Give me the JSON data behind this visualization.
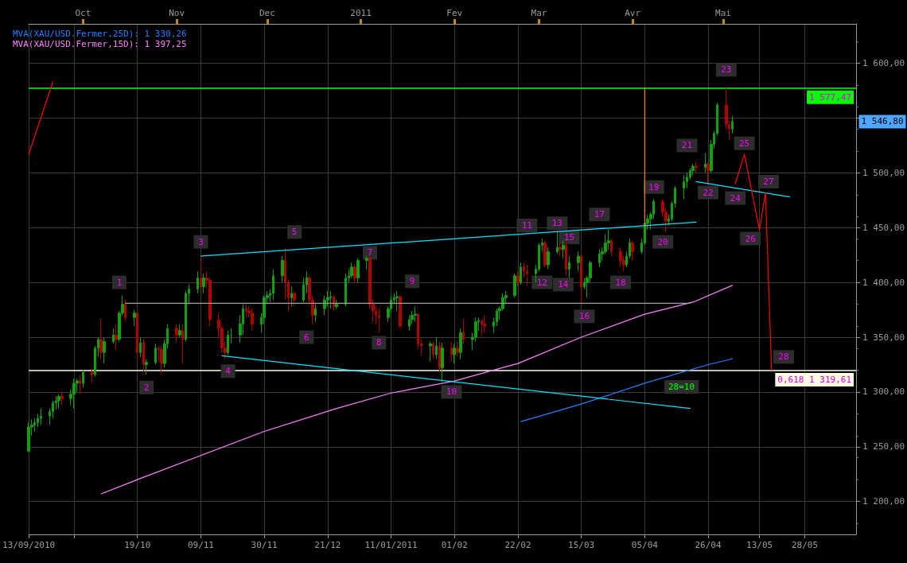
{
  "chart_data": {
    "type": "candlestick",
    "x": [
      "2010-09-13",
      "2010-09-14",
      "2010-09-15",
      "2010-09-16",
      "2010-09-17",
      "2010-09-20",
      "2010-09-21",
      "2010-09-22",
      "2010-09-23",
      "2010-09-24",
      "2010-09-27",
      "2010-09-28",
      "2010-09-29",
      "2010-09-30",
      "2010-10-01",
      "2010-10-04",
      "2010-10-05",
      "2010-10-06",
      "2010-10-07",
      "2010-10-08",
      "2010-10-11",
      "2010-10-12",
      "2010-10-13",
      "2010-10-14",
      "2010-10-15",
      "2010-10-18",
      "2010-10-19",
      "2010-10-20",
      "2010-10-21",
      "2010-10-22",
      "2010-10-25",
      "2010-10-26",
      "2010-10-27",
      "2010-10-28",
      "2010-10-29",
      "2010-11-01",
      "2010-11-02",
      "2010-11-03",
      "2010-11-04",
      "2010-11-05",
      "2010-11-08",
      "2010-11-09",
      "2010-11-10",
      "2010-11-11",
      "2010-11-12",
      "2010-11-15",
      "2010-11-16",
      "2010-11-17",
      "2010-11-18",
      "2010-11-19",
      "2010-11-22",
      "2010-11-23",
      "2010-11-24",
      "2010-11-25",
      "2010-11-26",
      "2010-11-29",
      "2010-11-30",
      "2010-12-01",
      "2010-12-02",
      "2010-12-03",
      "2010-12-06",
      "2010-12-07",
      "2010-12-08",
      "2010-12-09",
      "2010-12-10",
      "2010-12-13",
      "2010-12-14",
      "2010-12-15",
      "2010-12-16",
      "2010-12-17",
      "2010-12-20",
      "2010-12-21",
      "2010-12-22",
      "2010-12-23",
      "2010-12-24",
      "2010-12-27",
      "2010-12-28",
      "2010-12-29",
      "2010-12-30",
      "2010-12-31",
      "2011-01-03",
      "2011-01-04",
      "2011-01-05",
      "2011-01-06",
      "2011-01-07",
      "2011-01-10",
      "2011-01-11",
      "2011-01-12",
      "2011-01-13",
      "2011-01-14",
      "2011-01-17",
      "2011-01-18",
      "2011-01-19",
      "2011-01-20",
      "2011-01-21",
      "2011-01-24",
      "2011-01-25",
      "2011-01-26",
      "2011-01-27",
      "2011-01-28",
      "2011-01-31",
      "2011-02-01",
      "2011-02-02",
      "2011-02-03",
      "2011-02-04",
      "2011-02-07",
      "2011-02-08",
      "2011-02-09",
      "2011-02-10",
      "2011-02-11",
      "2011-02-14",
      "2011-02-15",
      "2011-02-16",
      "2011-02-17",
      "2011-02-18",
      "2011-02-21",
      "2011-02-22",
      "2011-02-23",
      "2011-02-24",
      "2011-02-25",
      "2011-02-28",
      "2011-03-01",
      "2011-03-02",
      "2011-03-03",
      "2011-03-04",
      "2011-03-07",
      "2011-03-08",
      "2011-03-09",
      "2011-03-10",
      "2011-03-11",
      "2011-03-14",
      "2011-03-15",
      "2011-03-16",
      "2011-03-17",
      "2011-03-18",
      "2011-03-21",
      "2011-03-22",
      "2011-03-23",
      "2011-03-24",
      "2011-03-25",
      "2011-03-28",
      "2011-03-29",
      "2011-03-30",
      "2011-03-31",
      "2011-04-01",
      "2011-04-04",
      "2011-04-05",
      "2011-04-06",
      "2011-04-07",
      "2011-04-08",
      "2011-04-11",
      "2011-04-12",
      "2011-04-13",
      "2011-04-14",
      "2011-04-15",
      "2011-04-18",
      "2011-04-19",
      "2011-04-20",
      "2011-04-21",
      "2011-04-22",
      "2011-04-25",
      "2011-04-26",
      "2011-04-27",
      "2011-04-28",
      "2011-04-29",
      "2011-05-02",
      "2011-05-03",
      "2011-05-04"
    ],
    "ohlc": [
      [
        1246,
        1272,
        1245,
        1268
      ],
      [
        1268,
        1275,
        1260,
        1270
      ],
      [
        1270,
        1276,
        1264,
        1272
      ],
      [
        1272,
        1280,
        1268,
        1276
      ],
      [
        1276,
        1285,
        1270,
        1278
      ],
      [
        1278,
        1285,
        1270,
        1282
      ],
      [
        1282,
        1292,
        1276,
        1290
      ],
      [
        1290,
        1296,
        1284,
        1292
      ],
      [
        1292,
        1298,
        1285,
        1296
      ],
      [
        1296,
        1300,
        1288,
        1294
      ],
      [
        1294,
        1302,
        1288,
        1298
      ],
      [
        1298,
        1312,
        1285,
        1308
      ],
      [
        1308,
        1312,
        1300,
        1310
      ],
      [
        1310,
        1315,
        1298,
        1308
      ],
      [
        1308,
        1320,
        1304,
        1318
      ],
      [
        1318,
        1322,
        1308,
        1316
      ],
      [
        1316,
        1342,
        1314,
        1340
      ],
      [
        1340,
        1350,
        1332,
        1348
      ],
      [
        1348,
        1366,
        1330,
        1336
      ],
      [
        1336,
        1350,
        1326,
        1346
      ],
      [
        1346,
        1358,
        1344,
        1352
      ],
      [
        1352,
        1362,
        1338,
        1348
      ],
      [
        1348,
        1374,
        1346,
        1372
      ],
      [
        1372,
        1388,
        1370,
        1380
      ],
      [
        1380,
        1384,
        1365,
        1368
      ],
      [
        1368,
        1375,
        1360,
        1372
      ],
      [
        1372,
        1374,
        1330,
        1336
      ],
      [
        1336,
        1350,
        1332,
        1345
      ],
      [
        1345,
        1348,
        1318,
        1325
      ],
      [
        1325,
        1330,
        1316,
        1327
      ],
      [
        1327,
        1344,
        1325,
        1340
      ],
      [
        1340,
        1342,
        1328,
        1339
      ],
      [
        1339,
        1342,
        1318,
        1326
      ],
      [
        1326,
        1348,
        1322,
        1344
      ],
      [
        1344,
        1362,
        1340,
        1358
      ],
      [
        1358,
        1362,
        1346,
        1352
      ],
      [
        1352,
        1362,
        1350,
        1356
      ],
      [
        1356,
        1362,
        1326,
        1348
      ],
      [
        1348,
        1392,
        1346,
        1390
      ],
      [
        1390,
        1398,
        1380,
        1394
      ],
      [
        1394,
        1410,
        1390,
        1404
      ],
      [
        1404,
        1424,
        1392,
        1396
      ],
      [
        1396,
        1408,
        1390,
        1404
      ],
      [
        1404,
        1410,
        1395,
        1402
      ],
      [
        1402,
        1404,
        1360,
        1366
      ],
      [
        1366,
        1372,
        1350,
        1358
      ],
      [
        1358,
        1360,
        1336,
        1340
      ],
      [
        1340,
        1346,
        1330,
        1336
      ],
      [
        1336,
        1356,
        1334,
        1352
      ],
      [
        1352,
        1358,
        1344,
        1352
      ],
      [
        1352,
        1370,
        1345,
        1362
      ],
      [
        1362,
        1380,
        1352,
        1376
      ],
      [
        1376,
        1380,
        1368,
        1374
      ],
      [
        1374,
        1378,
        1368,
        1372
      ],
      [
        1372,
        1376,
        1356,
        1362
      ],
      [
        1362,
        1372,
        1354,
        1368
      ],
      [
        1368,
        1388,
        1362,
        1386
      ],
      [
        1386,
        1392,
        1380,
        1388
      ],
      [
        1388,
        1394,
        1382,
        1390
      ],
      [
        1390,
        1412,
        1384,
        1406
      ],
      [
        1406,
        1424,
        1400,
        1420
      ],
      [
        1420,
        1431,
        1384,
        1400
      ],
      [
        1400,
        1402,
        1374,
        1386
      ],
      [
        1386,
        1396,
        1378,
        1390
      ],
      [
        1390,
        1392,
        1378,
        1384
      ],
      [
        1384,
        1404,
        1382,
        1398
      ],
      [
        1398,
        1410,
        1390,
        1404
      ],
      [
        1404,
        1406,
        1380,
        1384
      ],
      [
        1384,
        1388,
        1362,
        1370
      ],
      [
        1370,
        1380,
        1364,
        1376
      ],
      [
        1376,
        1388,
        1370,
        1384
      ],
      [
        1384,
        1392,
        1378,
        1386
      ],
      [
        1386,
        1392,
        1376,
        1387
      ],
      [
        1387,
        1388,
        1374,
        1378
      ],
      [
        1378,
        1384,
        1376,
        1380
      ],
      [
        1380,
        1408,
        1378,
        1404
      ],
      [
        1404,
        1412,
        1400,
        1406
      ],
      [
        1406,
        1418,
        1404,
        1414
      ],
      [
        1414,
        1416,
        1400,
        1404
      ],
      [
        1404,
        1422,
        1400,
        1420
      ],
      [
        1420,
        1424,
        1412,
        1422
      ],
      [
        1422,
        1424,
        1376,
        1380
      ],
      [
        1380,
        1384,
        1364,
        1374
      ],
      [
        1374,
        1378,
        1362,
        1370
      ],
      [
        1370,
        1376,
        1354,
        1368
      ],
      [
        1368,
        1378,
        1364,
        1376
      ],
      [
        1376,
        1388,
        1372,
        1384
      ],
      [
        1384,
        1390,
        1380,
        1386
      ],
      [
        1386,
        1392,
        1374,
        1387
      ],
      [
        1387,
        1388,
        1358,
        1360
      ],
      [
        1360,
        1370,
        1356,
        1366
      ],
      [
        1366,
        1374,
        1362,
        1370
      ],
      [
        1370,
        1378,
        1364,
        1371
      ],
      [
        1371,
        1372,
        1340,
        1344
      ],
      [
        1344,
        1348,
        1334,
        1342
      ],
      [
        1342,
        1346,
        1328,
        1344
      ],
      [
        1344,
        1346,
        1330,
        1334
      ],
      [
        1334,
        1350,
        1330,
        1342
      ],
      [
        1342,
        1346,
        1318,
        1322
      ],
      [
        1322,
        1345,
        1309,
        1340
      ],
      [
        1340,
        1346,
        1328,
        1334
      ],
      [
        1334,
        1344,
        1326,
        1340
      ],
      [
        1340,
        1346,
        1332,
        1336
      ],
      [
        1336,
        1358,
        1330,
        1354
      ],
      [
        1354,
        1366,
        1344,
        1348
      ],
      [
        1348,
        1354,
        1338,
        1350
      ],
      [
        1350,
        1368,
        1346,
        1364
      ],
      [
        1364,
        1368,
        1356,
        1365
      ],
      [
        1365,
        1366,
        1352,
        1362
      ],
      [
        1362,
        1370,
        1354,
        1360
      ],
      [
        1360,
        1368,
        1354,
        1364
      ],
      [
        1364,
        1376,
        1360,
        1374
      ],
      [
        1374,
        1378,
        1366,
        1376
      ],
      [
        1376,
        1390,
        1374,
        1386
      ],
      [
        1386,
        1392,
        1380,
        1388
      ],
      [
        1388,
        1408,
        1386,
        1406
      ],
      [
        1406,
        1410,
        1396,
        1400
      ],
      [
        1400,
        1418,
        1398,
        1414
      ],
      [
        1414,
        1418,
        1404,
        1410
      ],
      [
        1410,
        1416,
        1398,
        1408
      ],
      [
        1408,
        1416,
        1400,
        1412
      ],
      [
        1412,
        1436,
        1410,
        1434
      ],
      [
        1434,
        1440,
        1428,
        1436
      ],
      [
        1436,
        1438,
        1414,
        1416
      ],
      [
        1416,
        1432,
        1412,
        1428
      ],
      [
        1428,
        1446,
        1426,
        1432
      ],
      [
        1432,
        1436,
        1424,
        1430
      ],
      [
        1430,
        1438,
        1422,
        1434
      ],
      [
        1434,
        1436,
        1406,
        1412
      ],
      [
        1412,
        1424,
        1404,
        1418
      ],
      [
        1418,
        1428,
        1410,
        1424
      ],
      [
        1424,
        1426,
        1382,
        1396
      ],
      [
        1396,
        1404,
        1394,
        1400
      ],
      [
        1400,
        1406,
        1386,
        1404
      ],
      [
        1404,
        1420,
        1400,
        1418
      ],
      [
        1418,
        1430,
        1414,
        1426
      ],
      [
        1426,
        1432,
        1420,
        1428
      ],
      [
        1428,
        1444,
        1426,
        1436
      ],
      [
        1436,
        1448,
        1430,
        1438
      ],
      [
        1438,
        1440,
        1424,
        1428
      ],
      [
        1428,
        1432,
        1414,
        1420
      ],
      [
        1420,
        1424,
        1410,
        1416
      ],
      [
        1416,
        1428,
        1414,
        1424
      ],
      [
        1424,
        1440,
        1422,
        1436
      ],
      [
        1436,
        1438,
        1420,
        1428
      ],
      [
        1428,
        1440,
        1426,
        1436
      ],
      [
        1436,
        1456,
        1434,
        1454
      ],
      [
        1454,
        1462,
        1448,
        1458
      ],
      [
        1458,
        1464,
        1448,
        1462
      ],
      [
        1462,
        1476,
        1458,
        1474
      ],
      [
        1474,
        1476,
        1460,
        1464
      ],
      [
        1464,
        1468,
        1446,
        1456
      ],
      [
        1456,
        1462,
        1452,
        1458
      ],
      [
        1458,
        1474,
        1456,
        1472
      ],
      [
        1472,
        1488,
        1468,
        1486
      ],
      [
        1486,
        1498,
        1476,
        1492
      ],
      [
        1492,
        1500,
        1486,
        1496
      ],
      [
        1496,
        1504,
        1494,
        1502
      ],
      [
        1502,
        1508,
        1498,
        1506
      ],
      [
        1506,
        1510,
        1500,
        1505
      ],
      [
        1505,
        1518,
        1500,
        1508
      ],
      [
        1508,
        1510,
        1490,
        1502
      ],
      [
        1502,
        1530,
        1500,
        1526
      ],
      [
        1526,
        1538,
        1522,
        1536
      ],
      [
        1536,
        1564,
        1534,
        1562
      ],
      [
        1562,
        1577.47,
        1540,
        1544
      ],
      [
        1544,
        1548,
        1530,
        1540
      ],
      [
        1540,
        1552,
        1536,
        1546.8
      ]
    ],
    "series": [
      {
        "type": "line",
        "name": "MVA(XAU/USD.Fermer,25D): 1 330,26",
        "color": "#1e7fff",
        "x": [
          "2011-02-23",
          "2011-03-15",
          "2011-04-05",
          "2011-04-26",
          "2011-05-04"
        ],
        "values": [
          1273,
          1289,
          1308,
          1325,
          1330.26
        ]
      },
      {
        "type": "line",
        "name": "MVA(XAU/USD.Fermer,15D): 1 397,25",
        "color": "#ff80ff",
        "x": [
          "2010-10-07",
          "2010-10-19",
          "2010-11-09",
          "2010-11-30",
          "2010-12-24",
          "2011-01-11",
          "2011-02-01",
          "2011-02-14",
          "2011-02-22",
          "2011-03-15",
          "2011-04-05",
          "2011-04-21",
          "2011-05-04"
        ],
        "values": [
          1207,
          1220,
          1242,
          1264,
          1285,
          1299,
          1310,
          1320,
          1326,
          1350,
          1371,
          1382,
          1397.25
        ]
      },
      {
        "type": "line",
        "color": "#00e5ff",
        "x": [
          "2010-11-09",
          "2011-04-22"
        ],
        "values": [
          1424,
          1455
        ]
      },
      {
        "type": "line",
        "color": "#00e5ff",
        "x": [
          "2010-11-16",
          "2011-04-20"
        ],
        "values": [
          1333,
          1285
        ]
      },
      {
        "type": "line",
        "color": "#00e5ff",
        "x": [
          "2011-04-22",
          "2011-05-23"
        ],
        "values": [
          1492,
          1478
        ]
      },
      {
        "type": "line",
        "color": "#a0a0a0",
        "x": [
          "2010-10-15",
          "2011-04-20"
        ],
        "values": [
          1381,
          1381
        ]
      },
      {
        "type": "line",
        "color": "#ff8000",
        "x": [
          "2011-04-05",
          "2011-04-05"
        ],
        "values": [
          1577.47,
          1452
        ]
      },
      {
        "type": "line",
        "color": "#ff0000",
        "x": [
          "2010-09-13",
          "2010-09-21"
        ],
        "values": [
          1517,
          1583
        ]
      },
      {
        "type": "line",
        "color": "#ff0000",
        "x": [
          "2011-05-05",
          "2011-05-08",
          "2011-05-13",
          "2011-05-15",
          "2011-05-17"
        ],
        "values": [
          1490,
          1517,
          1448,
          1482,
          1320
        ]
      }
    ],
    "xlim": [
      "2010-09-13",
      "2011-06-14"
    ],
    "xticks": [
      {
        "value": "2010-09-13",
        "label": "13/09/2010"
      },
      {
        "value": "2010-09-28",
        "label": null
      },
      {
        "value": "2010-10-19",
        "label": "19/10"
      },
      {
        "value": "2010-11-09",
        "label": "09/11"
      },
      {
        "value": "2010-11-30",
        "label": "30/11"
      },
      {
        "value": "2010-12-21",
        "label": "21/12"
      },
      {
        "value": "2011-01-11",
        "label": "11/01/2011"
      },
      {
        "value": "2011-02-01",
        "label": "01/02"
      },
      {
        "value": "2011-02-22",
        "label": "22/02"
      },
      {
        "value": "2011-03-15",
        "label": "15/03"
      },
      {
        "value": "2011-04-05",
        "label": "05/04"
      },
      {
        "value": "2011-04-26",
        "label": "26/04"
      },
      {
        "value": "2011-05-13",
        "label": "13/05"
      },
      {
        "value": "2011-05-28",
        "label": "28/05"
      }
    ],
    "x2lim": [
      "2010-09-13",
      "2011-06-14"
    ],
    "x2ticks": [
      {
        "value": "2010-10-01",
        "label": "Oct"
      },
      {
        "value": "2010-11-01",
        "label": "Nov"
      },
      {
        "value": "2010-12-01",
        "label": "Dec"
      },
      {
        "value": "2011-01-01",
        "label": "2011"
      },
      {
        "value": "2011-02-01",
        "label": "Fev"
      },
      {
        "value": "2011-03-01",
        "label": "Mar"
      },
      {
        "value": "2011-04-01",
        "label": "Avr"
      },
      {
        "value": "2011-05-01",
        "label": "Mai"
      }
    ],
    "ylim": [
      1170,
      1636
    ],
    "yticks": [
      {
        "value": 1200,
        "label": "1 200,00"
      },
      {
        "value": 1250,
        "label": "1 250,00"
      },
      {
        "value": 1300,
        "label": "1 300,00"
      },
      {
        "value": 1350,
        "label": "1 350,00"
      },
      {
        "value": 1400,
        "label": "1 400,00"
      },
      {
        "value": 1450,
        "label": "1 450,00"
      },
      {
        "value": 1500,
        "label": "1 500,00"
      },
      {
        "value": 1550,
        "label": null
      },
      {
        "value": 1600,
        "label": "1 600,00"
      }
    ],
    "ref_lines": [
      {
        "axis": "y",
        "value": 1577.47,
        "label": "1 577,47",
        "color": "#00ff00"
      },
      {
        "axis": "y",
        "value": 1319.61,
        "label": "0,618 1 319,61",
        "color": "#fffbe0"
      }
    ],
    "annotations": [
      {
        "text": "1",
        "x": "2010-10-13",
        "y": 1400
      },
      {
        "text": "2",
        "x": "2010-10-22",
        "y": 1304
      },
      {
        "text": "3",
        "x": "2010-11-09",
        "y": 1437
      },
      {
        "text": "4",
        "x": "2010-11-18",
        "y": 1319
      },
      {
        "text": "5",
        "x": "2010-12-10",
        "y": 1446
      },
      {
        "text": "6",
        "x": "2010-12-14",
        "y": 1350
      },
      {
        "text": "7",
        "x": "2011-01-04",
        "y": 1427
      },
      {
        "text": "8",
        "x": "2011-01-07",
        "y": 1345
      },
      {
        "text": "9",
        "x": "2011-01-18",
        "y": 1401
      },
      {
        "text": "10",
        "x": "2011-01-31",
        "y": 1300
      },
      {
        "text": "11",
        "x": "2011-02-25",
        "y": 1452
      },
      {
        "text": "12",
        "x": "2011-03-02",
        "y": 1400
      },
      {
        "text": "13",
        "x": "2011-03-07",
        "y": 1454
      },
      {
        "text": "14",
        "x": "2011-03-09",
        "y": 1398
      },
      {
        "text": "15",
        "x": "2011-03-11",
        "y": 1441
      },
      {
        "text": "16",
        "x": "2011-03-16",
        "y": 1369
      },
      {
        "text": "17",
        "x": "2011-03-21",
        "y": 1462
      },
      {
        "text": "18",
        "x": "2011-03-28",
        "y": 1400
      },
      {
        "text": "19",
        "x": "2011-04-08",
        "y": 1487
      },
      {
        "text": "20",
        "x": "2011-04-11",
        "y": 1437
      },
      {
        "text": "21",
        "x": "2011-04-19",
        "y": 1525
      },
      {
        "text": "22",
        "x": "2011-04-26",
        "y": 1482
      },
      {
        "text": "23",
        "x": "2011-05-02",
        "y": 1594
      },
      {
        "text": "24",
        "x": "2011-05-05",
        "y": 1477
      },
      {
        "text": "25",
        "x": "2011-05-08",
        "y": 1527
      },
      {
        "text": "26",
        "x": "2011-05-10",
        "y": 1440
      },
      {
        "text": "27",
        "x": "2011-05-16",
        "y": 1492
      },
      {
        "text": "28",
        "x": "2011-05-21",
        "y": 1332
      },
      "28=10"
    ],
    "value_labels": [
      null,
      null,
      null,
      null,
      null,
      null,
      null,
      null,
      null,
      null,
      null,
      null,
      null,
      null,
      null,
      null,
      null,
      null,
      null,
      null,
      null,
      null,
      null,
      null,
      null,
      null,
      null,
      null,
      null,
      null,
      null,
      null,
      null,
      null,
      null,
      null,
      null,
      null,
      null,
      null,
      null,
      null,
      null,
      null,
      null,
      null,
      null,
      null,
      null,
      null,
      null,
      null,
      null,
      null,
      null,
      null,
      null,
      null,
      null,
      null,
      null,
      null,
      null,
      null,
      null,
      null,
      null,
      null,
      null,
      null,
      null,
      null,
      null,
      null,
      null,
      null,
      null,
      null,
      null,
      null,
      null,
      null,
      null,
      null,
      null,
      null,
      null,
      null,
      null,
      null,
      null,
      null,
      null,
      null,
      null,
      null,
      null,
      null,
      null,
      null,
      null,
      null,
      null,
      null,
      null,
      null,
      null,
      null,
      null,
      null,
      null,
      null,
      null,
      null,
      null,
      null,
      null,
      null,
      null,
      null,
      null,
      null,
      null,
      null,
      null,
      null,
      null,
      null,
      null,
      null,
      null,
      null,
      null,
      null,
      null,
      null,
      null,
      null,
      null,
      null,
      null,
      null,
      null,
      null,
      null,
      null,
      null,
      null,
      null,
      null,
      null,
      null,
      null,
      null,
      null,
      null,
      null,
      null,
      null,
      null,
      null,
      null,
      null,
      null,
      null,
      null,
      null,
      "1 546,80"
    ],
    "grid": true,
    "legend": "top left",
    "marker": "none"
  }
}
